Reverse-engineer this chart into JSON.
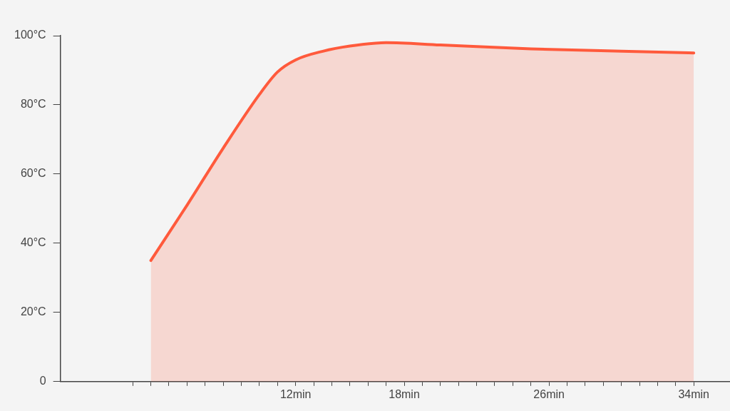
{
  "chart_data": {
    "type": "area",
    "x": [
      4,
      6,
      8,
      10,
      11,
      12,
      13.5,
      15,
      17,
      20,
      25,
      30,
      34
    ],
    "series": [
      {
        "color": "#ff5a3c",
        "values": [
          35,
          51,
          67.5,
          83,
          89.5,
          93,
          95.5,
          97,
          98,
          97.3,
          96.2,
          95.5,
          95
        ]
      }
    ],
    "xlim": [
      -1,
      36
    ],
    "xticks": [
      {
        "value": 3,
        "label": null
      },
      {
        "value": 4,
        "label": null
      },
      {
        "value": 5,
        "label": null
      },
      {
        "value": 6,
        "label": null
      },
      {
        "value": 7,
        "label": null
      },
      {
        "value": 8,
        "label": null
      },
      {
        "value": 9,
        "label": null
      },
      {
        "value": 10,
        "label": null
      },
      {
        "value": 11,
        "label": null
      },
      {
        "value": 12,
        "label": "12min"
      },
      {
        "value": 13,
        "label": null
      },
      {
        "value": 14,
        "label": null
      },
      {
        "value": 15,
        "label": null
      },
      {
        "value": 16,
        "label": null
      },
      {
        "value": 17,
        "label": null
      },
      {
        "value": 18,
        "label": "18min"
      },
      {
        "value": 19,
        "label": null
      },
      {
        "value": 20,
        "label": null
      },
      {
        "value": 21,
        "label": null
      },
      {
        "value": 22,
        "label": null
      },
      {
        "value": 23,
        "label": null
      },
      {
        "value": 24,
        "label": null
      },
      {
        "value": 25,
        "label": null
      },
      {
        "value": 26,
        "label": "26min"
      },
      {
        "value": 27,
        "label": null
      },
      {
        "value": 28,
        "label": null
      },
      {
        "value": 29,
        "label": null
      },
      {
        "value": 30,
        "label": null
      },
      {
        "value": 31,
        "label": null
      },
      {
        "value": 32,
        "label": null
      },
      {
        "value": 33,
        "label": null
      },
      {
        "value": 34,
        "label": "34min"
      }
    ],
    "ylim": [
      0,
      100
    ],
    "yticks": [
      0,
      {
        "value": 20,
        "label": "20°C"
      },
      {
        "value": 40,
        "label": "40°C"
      },
      {
        "value": 60,
        "label": "60°C"
      },
      {
        "value": 80,
        "label": "80°C"
      },
      {
        "value": 100,
        "label": "100°C"
      }
    ],
    "grid": false,
    "legend": false,
    "marker": "none",
    "line_style": "solid"
  }
}
